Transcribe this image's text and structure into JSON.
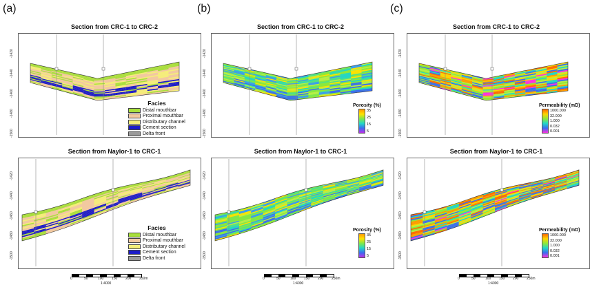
{
  "panels": [
    {
      "letter": "(a)",
      "kind": "facies",
      "top_title": "Section from CRC-1 to CRC-2",
      "bottom_title": "Section from Naylor-1 to CRC-1"
    },
    {
      "letter": "(b)",
      "kind": "porosity",
      "top_title": "Section from CRC-1 to CRC-2",
      "bottom_title": "Section from Naylor-1 to CRC-1"
    },
    {
      "letter": "(c)",
      "kind": "permeability",
      "top_title": "Section from CRC-1 to CRC-2",
      "bottom_title": "Section from Naylor-1 to CRC-1"
    }
  ],
  "yticks_top": [
    "-1420",
    "-1440",
    "-1460",
    "-1480",
    "-1500"
  ],
  "yticks_bottom": [
    "-1420",
    "-1440",
    "-1460",
    "-1480",
    "-1500"
  ],
  "facies_legend": {
    "title": "Facies",
    "items": [
      {
        "label": "Distal mouthbar",
        "color": "#a8e03c"
      },
      {
        "label": "Proximal mouthbar",
        "color": "#f2c9a0"
      },
      {
        "label": "Distributary channel",
        "color": "#f5ee7a"
      },
      {
        "label": "Cement section",
        "color": "#1c1cc8"
      },
      {
        "label": "Delta front",
        "color": "#9a9a9a"
      }
    ]
  },
  "porosity_bar": {
    "title": "Porosity (%)",
    "labels": [
      "35",
      "25",
      "15",
      "5"
    ]
  },
  "perm_bar": {
    "title": "Permeability (mD)",
    "labels": [
      "1000.000",
      "32.000",
      "1.000",
      "0.032",
      "0.001"
    ]
  },
  "scalebar": {
    "ticks": [
      "0",
      "50",
      "100",
      "150",
      "200",
      "250m"
    ],
    "ratio": "1:4000"
  },
  "colors": {
    "frame": "#666666",
    "well": "#888888"
  }
}
